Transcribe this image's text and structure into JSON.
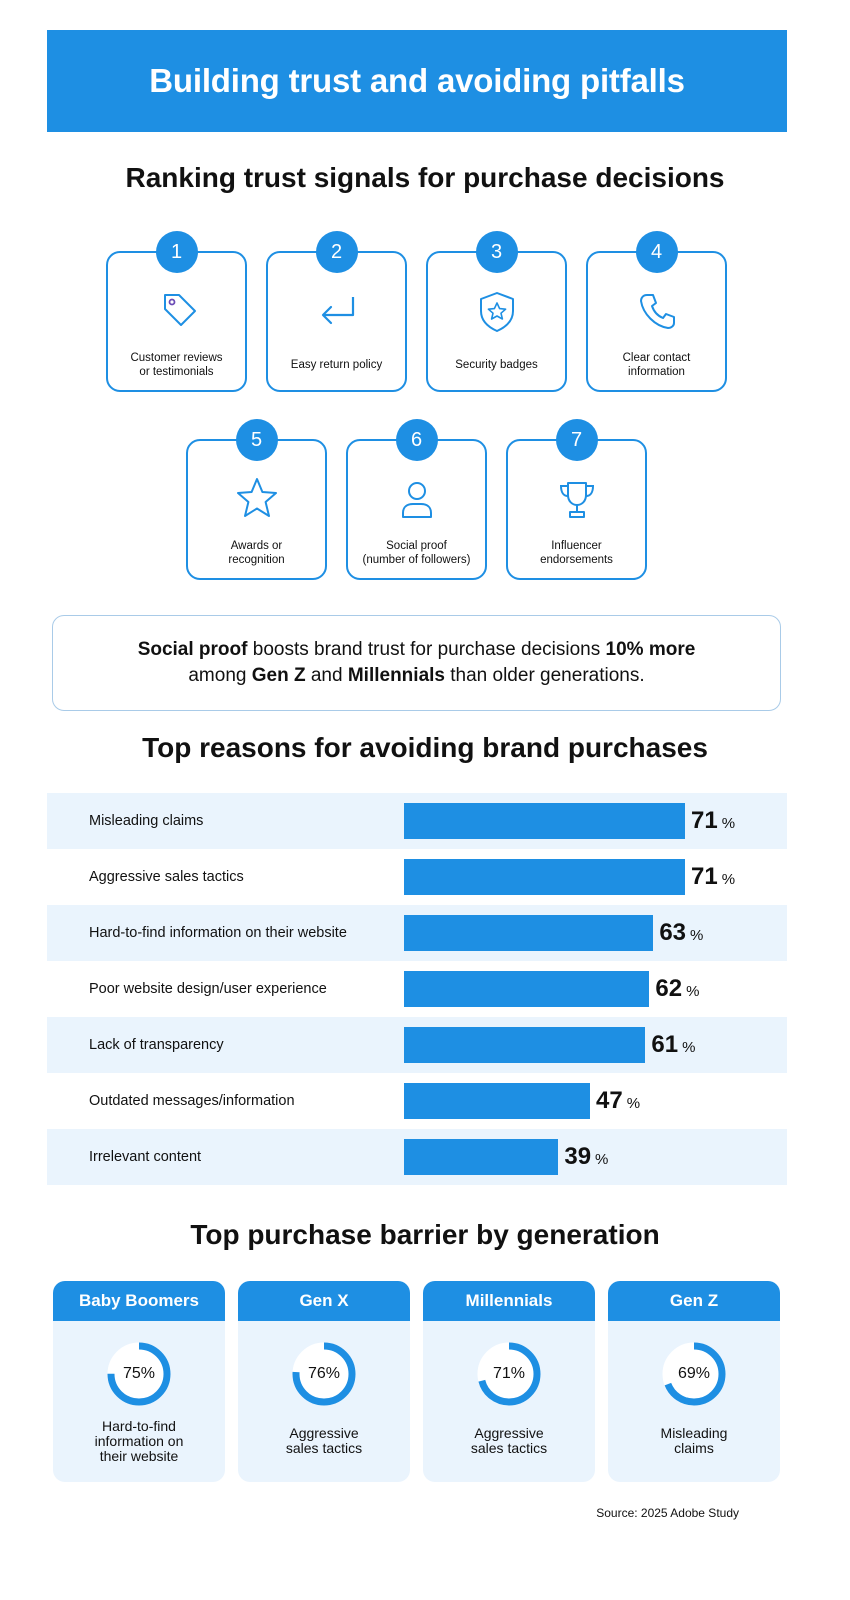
{
  "banner": {
    "title": "Building trust and avoiding pitfalls"
  },
  "signals": {
    "title": "Ranking trust signals for purchase decisions",
    "items": [
      {
        "rank": "1",
        "label": "Customer reviews\nor testimonials",
        "icon": "tag-icon"
      },
      {
        "rank": "2",
        "label": "Easy return policy",
        "icon": "return-arrow-icon"
      },
      {
        "rank": "3",
        "label": "Security badges",
        "icon": "shield-star-icon"
      },
      {
        "rank": "4",
        "label": "Clear contact\ninformation",
        "icon": "phone-icon"
      },
      {
        "rank": "5",
        "label": "Awards or\nrecognition",
        "icon": "star-icon"
      },
      {
        "rank": "6",
        "label": "Social proof\n(number of followers)",
        "icon": "person-icon"
      },
      {
        "rank": "7",
        "label": "Influencer\nendorsements",
        "icon": "trophy-icon"
      }
    ]
  },
  "callout": {
    "p1": "Social proof",
    "p2": " boosts brand trust for purchase decisions ",
    "p3": "10% more",
    "p4": "among ",
    "p5": "Gen Z",
    "p6": " and ",
    "p7": "Millennials",
    "p8": " than older generations."
  },
  "chart_data": [
    {
      "type": "bar",
      "title": "Top reasons for avoiding brand purchases",
      "categories": [
        "Misleading claims",
        "Aggressive sales tactics",
        "Hard-to-find information on their website",
        "Poor website design/user experience",
        "Lack of transparency",
        "Outdated messages/information",
        "Irrelevant content"
      ],
      "values": [
        71,
        71,
        63,
        62,
        61,
        47,
        39
      ],
      "unit": "%",
      "orientation": "horizontal",
      "xlim": [
        0,
        100
      ],
      "color": "#1e8fe3"
    },
    {
      "type": "donut",
      "title": "Top purchase barrier by generation",
      "series": [
        {
          "name": "Baby Boomers",
          "value": 75,
          "barrier": "Hard-to-find\ninformation on\ntheir website"
        },
        {
          "name": "Gen X",
          "value": 76,
          "barrier": "Aggressive\nsales tactics"
        },
        {
          "name": "Millennials",
          "value": 71,
          "barrier": "Aggressive\nsales tactics"
        },
        {
          "name": "Gen Z",
          "value": 69,
          "barrier": "Misleading\nclaims"
        }
      ],
      "unit": "%",
      "color": "#1e8fe3",
      "track_color": "#eaf4fd"
    }
  ],
  "source": "Source: 2025 Adobe Study"
}
